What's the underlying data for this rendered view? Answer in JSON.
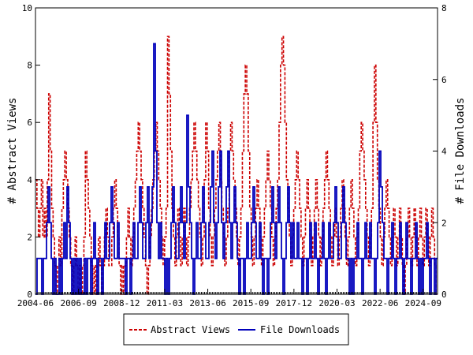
{
  "chart_data": {
    "type": "line",
    "x_tick_labels": [
      "2004-06",
      "2006-09",
      "2008-12",
      "2011-03",
      "2013-06",
      "2015-09",
      "2017-12",
      "2020-03",
      "2022-06",
      "2024-09"
    ],
    "x_range": [
      "2004-06",
      "2025-06"
    ],
    "y_left_label": "# Abstract Views",
    "y_right_label": "# File Downloads",
    "y_left_range": [
      0,
      10
    ],
    "y_right_range": [
      0,
      8
    ],
    "y_left_ticks": [
      "0",
      "2",
      "4",
      "6",
      "8",
      "10"
    ],
    "y_right_ticks": [
      "0",
      "2",
      "4",
      "6",
      "8"
    ],
    "grid": false,
    "legend_position": "bottom-center",
    "series": [
      {
        "name": "Abstract Views",
        "axis": "left",
        "color": "#cc0000",
        "style": "dashed",
        "values": [
          4,
          3,
          2,
          3,
          4,
          2,
          3,
          2,
          4,
          7,
          5,
          3,
          2,
          1,
          0,
          1,
          2,
          1,
          3,
          4,
          5,
          4,
          3,
          2,
          1,
          0,
          1,
          2,
          1,
          0,
          1,
          0,
          1,
          2,
          5,
          4,
          3,
          2,
          1,
          0,
          1,
          0,
          1,
          2,
          1,
          0,
          1,
          2,
          3,
          2,
          1,
          1,
          2,
          3,
          4,
          3,
          2,
          1,
          0,
          1,
          0,
          1,
          2,
          3,
          2,
          1,
          2,
          3,
          4,
          5,
          6,
          5,
          4,
          3,
          2,
          1,
          0,
          1,
          2,
          3,
          4,
          5,
          6,
          5,
          4,
          3,
          2,
          1,
          2,
          3,
          9,
          7,
          5,
          3,
          2,
          1,
          2,
          3,
          2,
          1,
          2,
          3,
          2,
          1,
          2,
          3,
          4,
          5,
          6,
          5,
          4,
          3,
          2,
          1,
          2,
          4,
          6,
          5,
          3,
          2,
          1,
          2,
          3,
          4,
          5,
          6,
          4,
          3,
          2,
          1,
          2,
          3,
          5,
          6,
          5,
          4,
          3,
          2,
          1,
          2,
          3,
          5,
          7,
          8,
          7,
          5,
          3,
          2,
          1,
          2,
          3,
          4,
          3,
          2,
          1,
          2,
          3,
          4,
          5,
          4,
          3,
          2,
          1,
          2,
          3,
          4,
          6,
          8,
          9,
          8,
          6,
          4,
          3,
          2,
          1,
          2,
          3,
          4,
          5,
          4,
          3,
          2,
          1,
          2,
          3,
          4,
          3,
          2,
          1,
          2,
          3,
          4,
          3,
          2,
          1,
          2,
          3,
          4,
          5,
          4,
          3,
          2,
          1,
          2,
          3,
          2,
          1,
          2,
          3,
          4,
          3,
          2,
          1,
          2,
          3,
          4,
          3,
          2,
          1,
          2,
          3,
          5,
          6,
          5,
          4,
          3,
          2,
          1,
          2,
          3,
          6,
          8,
          6,
          4,
          3,
          2,
          1,
          2,
          3,
          4,
          3,
          2,
          1,
          2,
          3,
          2,
          1,
          2,
          3,
          2,
          1,
          0,
          1,
          2,
          3,
          2,
          1,
          2,
          3,
          2,
          1,
          2,
          3,
          2,
          1,
          2,
          3,
          2,
          1,
          2,
          3,
          2,
          1,
          0
        ]
      },
      {
        "name": "File Downloads",
        "axis": "right",
        "color": "#0000bb",
        "style": "solid",
        "values": [
          0,
          1,
          1,
          1,
          0,
          1,
          1,
          2,
          3,
          2,
          1,
          0,
          1,
          0,
          0,
          1,
          0,
          1,
          2,
          1,
          3,
          2,
          1,
          0,
          1,
          0,
          1,
          0,
          1,
          0,
          0,
          1,
          0,
          1,
          1,
          0,
          1,
          2,
          1,
          0,
          1,
          1,
          0,
          1,
          2,
          1,
          1,
          2,
          3,
          2,
          1,
          1,
          2,
          1,
          1,
          1,
          1,
          0,
          1,
          1,
          0,
          1,
          2,
          1,
          1,
          2,
          3,
          2,
          1,
          1,
          2,
          3,
          1,
          2,
          3,
          7,
          4,
          2,
          1,
          2,
          1,
          1,
          0,
          1,
          0,
          1,
          2,
          3,
          2,
          1,
          1,
          2,
          3,
          2,
          1,
          2,
          5,
          3,
          2,
          1,
          0,
          1,
          2,
          1,
          1,
          2,
          3,
          2,
          1,
          1,
          2,
          3,
          4,
          2,
          1,
          2,
          3,
          4,
          2,
          1,
          2,
          3,
          4,
          2,
          1,
          2,
          3,
          2,
          1,
          0,
          1,
          1,
          0,
          1,
          2,
          1,
          1,
          2,
          3,
          2,
          1,
          1,
          2,
          1,
          0,
          1,
          1,
          0,
          1,
          2,
          3,
          2,
          1,
          2,
          3,
          2,
          1,
          0,
          1,
          2,
          3,
          2,
          1,
          2,
          1,
          1,
          2,
          1,
          1,
          0,
          1,
          1,
          0,
          1,
          2,
          1,
          1,
          2,
          1,
          0,
          1,
          1,
          2,
          1,
          0,
          1,
          2,
          1,
          1,
          2,
          3,
          2,
          1,
          1,
          2,
          3,
          2,
          1,
          1,
          0,
          1,
          0,
          1,
          1,
          2,
          1,
          1,
          0,
          1,
          2,
          1,
          1,
          2,
          1,
          1,
          0,
          1,
          2,
          4,
          3,
          2,
          1,
          1,
          0,
          1,
          1,
          2,
          1,
          0,
          1,
          1,
          2,
          1,
          0,
          1,
          2,
          1,
          1,
          0,
          1,
          1,
          2,
          1,
          0,
          1,
          0,
          1,
          1,
          2,
          1,
          0,
          1,
          1,
          0,
          1
        ]
      }
    ]
  }
}
